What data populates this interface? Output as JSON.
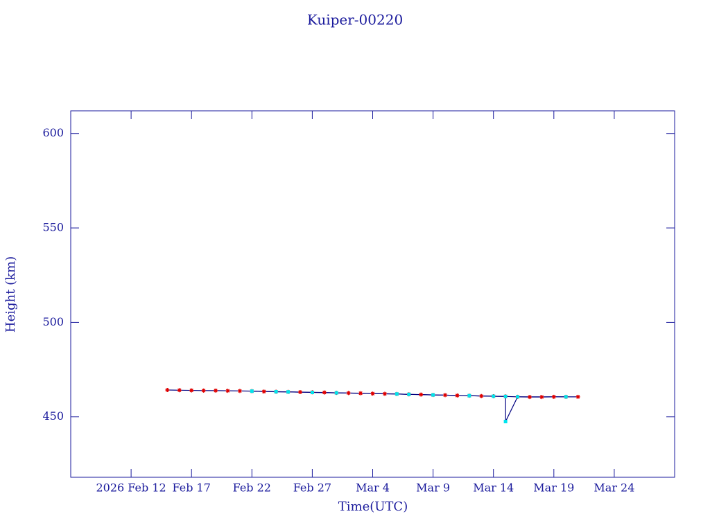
{
  "chart_data": {
    "type": "line",
    "title": "Kuiper-00220",
    "x_label": "Time(UTC)",
    "y_label": "Height (km)",
    "xlim": [
      "2026-02-07",
      "2026-03-29"
    ],
    "xticks": [
      {
        "value": "2026-02-12",
        "label": "2026 Feb 12"
      },
      {
        "value": "2026-02-17",
        "label": "Feb 17"
      },
      {
        "value": "2026-02-22",
        "label": "Feb 22"
      },
      {
        "value": "2026-02-27",
        "label": "Feb 27"
      },
      {
        "value": "2026-03-04",
        "label": "Mar  4"
      },
      {
        "value": "2026-03-09",
        "label": "Mar  9"
      },
      {
        "value": "2026-03-14",
        "label": "Mar 14"
      },
      {
        "value": "2026-03-19",
        "label": "Mar 19"
      },
      {
        "value": "2026-03-24",
        "label": "Mar 24"
      }
    ],
    "ylim": [
      418,
      612
    ],
    "yticks": [
      450,
      500,
      550,
      600
    ],
    "axis_color": "#1a1a9c",
    "series": [
      {
        "color": "#e00000",
        "line_color": "#000080",
        "marker": "star",
        "x": [
          "2026-02-15",
          "2026-02-16",
          "2026-02-17",
          "2026-02-18",
          "2026-02-19",
          "2026-02-20",
          "2026-02-21",
          "2026-02-22",
          "2026-02-23",
          "2026-02-24",
          "2026-02-25",
          "2026-02-26",
          "2026-02-27",
          "2026-02-28",
          "2026-03-01",
          "2026-03-02",
          "2026-03-03",
          "2026-03-04",
          "2026-03-05",
          "2026-03-06",
          "2026-03-07",
          "2026-03-08",
          "2026-03-09",
          "2026-03-10",
          "2026-03-11",
          "2026-03-12",
          "2026-03-13",
          "2026-03-14",
          "2026-03-15",
          "2026-03-16",
          "2026-03-17",
          "2026-03-18",
          "2026-03-19",
          "2026-03-20",
          "2026-03-21"
        ],
        "values": [
          464.2,
          464.1,
          464.0,
          463.9,
          463.9,
          463.8,
          463.7,
          463.6,
          463.4,
          463.3,
          463.2,
          463.1,
          463.0,
          462.9,
          462.7,
          462.6,
          462.5,
          462.3,
          462.2,
          462.1,
          461.9,
          461.8,
          461.6,
          461.5,
          461.3,
          461.2,
          461.0,
          460.9,
          460.8,
          460.6,
          460.5,
          460.5,
          460.6,
          460.6,
          460.6
        ]
      },
      {
        "color": "#00e5ee",
        "line_color": "#000080",
        "marker": "square",
        "x": [
          "2026-02-22",
          "2026-02-24",
          "2026-02-25",
          "2026-02-27",
          "2026-03-01",
          "2026-03-06",
          "2026-03-07",
          "2026-03-09",
          "2026-03-12",
          "2026-03-14",
          "2026-03-15",
          "2026-03-15",
          "2026-03-16",
          "2026-03-20"
        ],
        "values": [
          463.6,
          463.3,
          463.2,
          462.9,
          462.7,
          462.1,
          461.9,
          461.6,
          461.2,
          460.9,
          460.8,
          447.5,
          460.6,
          460.6
        ]
      }
    ]
  }
}
